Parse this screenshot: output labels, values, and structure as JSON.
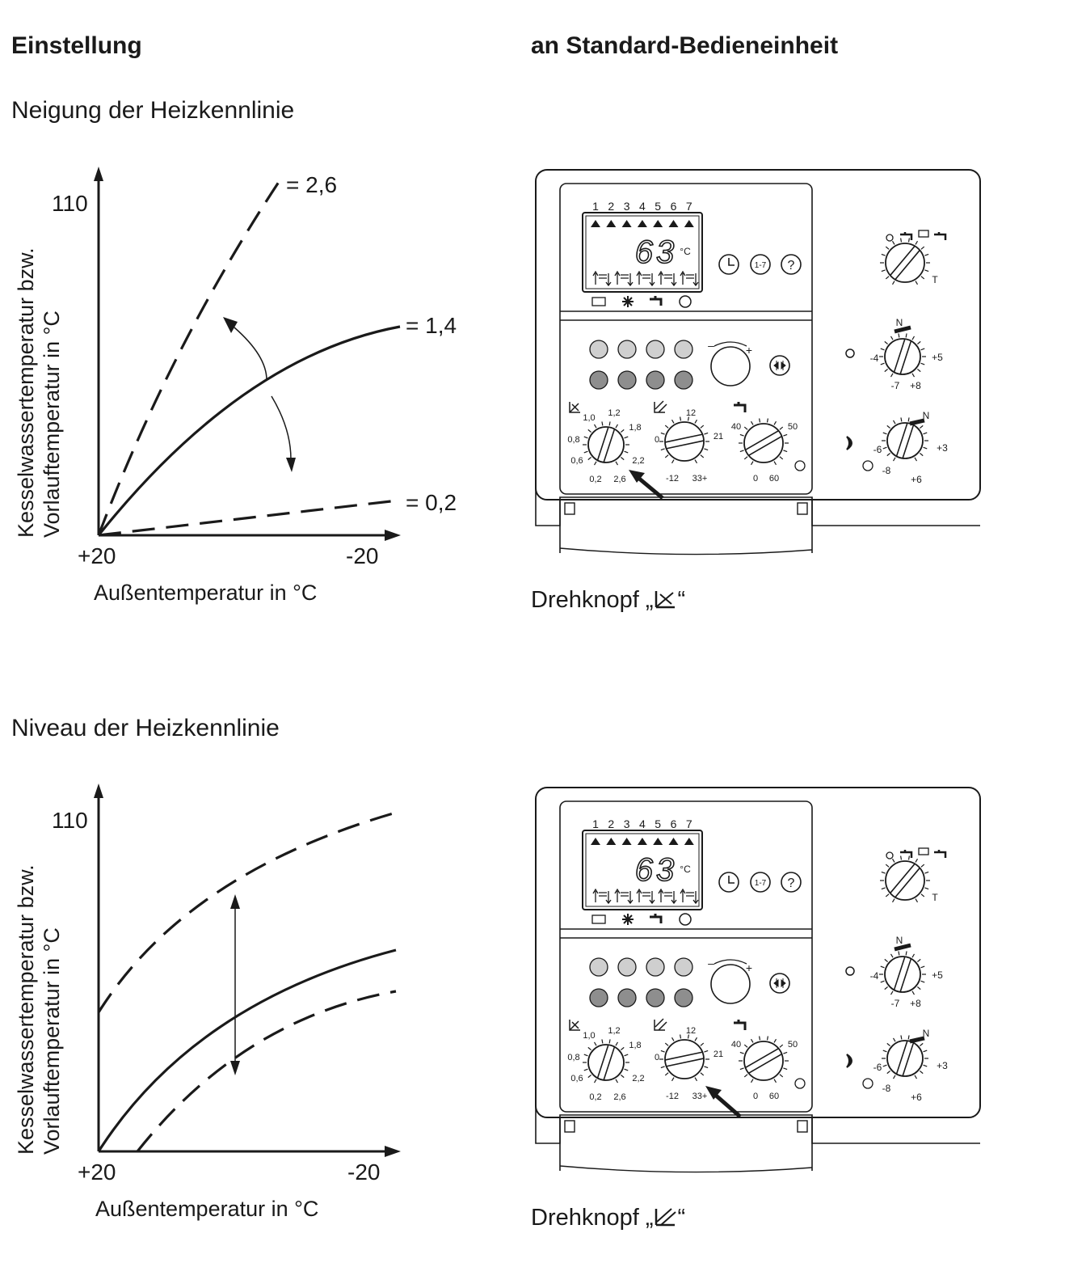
{
  "header": {
    "left": "Einstellung",
    "right": "an Standard-Bedieneinheit"
  },
  "section1": {
    "title": "Neigung der Heizkennlinie",
    "y_axis_label_1": "Kesselwassertemperatur bzw.",
    "y_axis_label_2": "Vorlauftemperatur in °C",
    "y_tick": "110",
    "x_tick_left": "+20",
    "x_tick_right": "-20",
    "x_axis_label": "Außentemperatur in °C",
    "curves": [
      {
        "label": "= 2,6",
        "style": "dashed"
      },
      {
        "label": "= 1,4",
        "style": "solid"
      },
      {
        "label": "= 0,2",
        "style": "dashed"
      }
    ],
    "caption_prefix": "Drehknopf „",
    "caption_suffix": "“",
    "caption_icon": "slope-icon"
  },
  "section2": {
    "title": "Niveau der Heizkennlinie",
    "y_axis_label_1": "Kesselwassertemperatur bzw.",
    "y_axis_label_2": "Vorlauftemperatur in °C",
    "y_tick": "110",
    "x_tick_left": "+20",
    "x_tick_right": "-20",
    "x_axis_label": "Außentemperatur in °C",
    "caption_prefix": "Drehknopf „",
    "caption_suffix": "“",
    "caption_icon": "level-icon"
  },
  "panel": {
    "day_numbers": [
      "1",
      "2",
      "3",
      "4",
      "5",
      "6",
      "7"
    ],
    "display_value": "63",
    "display_unit": "°C",
    "btn_clock": "clock-icon",
    "btn_week": "1-7",
    "btn_help": "?",
    "slope_dial": {
      "labels": [
        "1,0",
        "1,2",
        "1,8",
        "0,8",
        "0,6",
        "2,2",
        "0,2",
        "2,6"
      ]
    },
    "level_dial": {
      "labels": [
        "12",
        "0",
        "21",
        "-12",
        "33+"
      ]
    },
    "dhw_dial": {
      "labels": [
        "40",
        "50",
        "0",
        "60"
      ]
    },
    "day_dial": {
      "labels": [
        "N",
        "-4",
        "+5",
        "-7",
        "+8"
      ]
    },
    "night_dial": {
      "labels": [
        "N",
        "-6",
        "+3",
        "-8",
        "+6"
      ]
    },
    "mode_dial": {
      "labels": [
        "T"
      ]
    }
  }
}
